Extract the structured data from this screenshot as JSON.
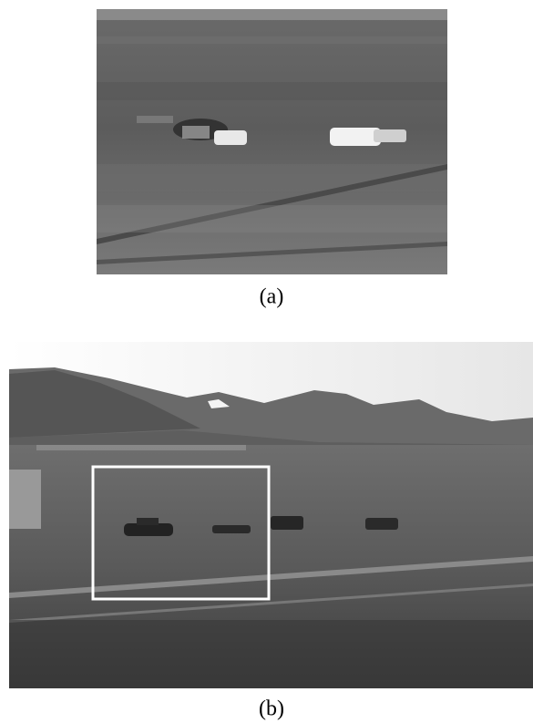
{
  "figure": {
    "panels": [
      {
        "label": "(a)"
      },
      {
        "label": "(b)"
      }
    ]
  }
}
